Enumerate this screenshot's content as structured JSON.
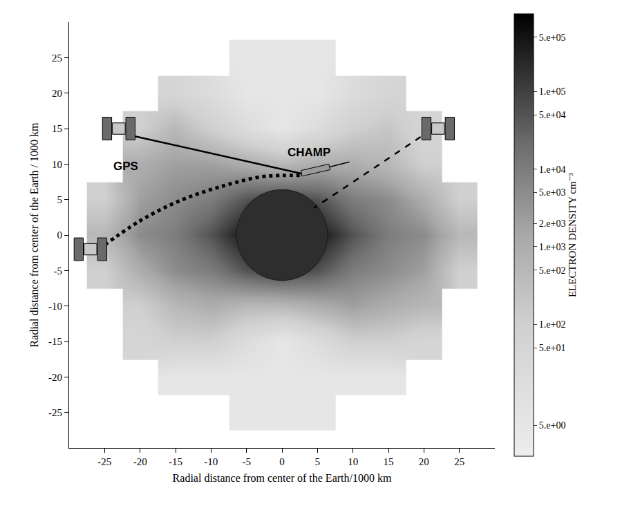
{
  "chart_data": {
    "type": "heatmap",
    "x": [
      -25,
      -20,
      -15,
      -10,
      -5,
      0,
      5,
      10,
      15,
      20,
      25
    ],
    "y": [
      -25,
      -20,
      -15,
      -10,
      -5,
      0,
      5,
      10,
      15,
      20,
      25
    ],
    "cells": [
      [
        null,
        null,
        null,
        null,
        5,
        5,
        5,
        null,
        null,
        null,
        null
      ],
      [
        null,
        null,
        5,
        5,
        5,
        5,
        5,
        5,
        5,
        null,
        null
      ],
      [
        null,
        50,
        100,
        100,
        20,
        5,
        20,
        100,
        100,
        50,
        null
      ],
      [
        null,
        100,
        500,
        1000,
        500,
        500,
        1000,
        2000,
        1000,
        500,
        null
      ],
      [
        100,
        1000,
        5000,
        10000,
        50000,
        100000,
        50000,
        10000,
        5000,
        2000,
        100
      ],
      [
        500,
        5000,
        10000,
        50000,
        500000,
        500000,
        500000,
        50000,
        10000,
        5000,
        500
      ],
      [
        100,
        2000,
        5000,
        10000,
        50000,
        100000,
        50000,
        10000,
        5000,
        1000,
        100
      ],
      [
        null,
        1000,
        2000,
        2000,
        1000,
        500,
        1000,
        1000,
        500,
        100,
        null
      ],
      [
        null,
        100,
        500,
        100,
        20,
        5,
        20,
        100,
        200,
        50,
        null
      ],
      [
        null,
        null,
        50,
        20,
        5,
        5,
        5,
        20,
        50,
        null,
        null
      ],
      [
        null,
        null,
        null,
        null,
        5,
        5,
        5,
        null,
        null,
        null,
        null
      ]
    ],
    "xlim": [
      -30,
      30
    ],
    "ylim": [
      -30,
      30
    ],
    "xticks": [
      -25,
      -20,
      -15,
      -10,
      -5,
      0,
      5,
      10,
      15,
      20,
      25
    ],
    "yticks": [
      -25,
      -20,
      -15,
      -10,
      -5,
      0,
      5,
      10,
      15,
      20,
      25
    ],
    "x_label": "Radial distance from center of the Earth/1000 km",
    "y_label": "Radial distance from center of the Earth / 1000 km",
    "colorbar": {
      "title": "ELECTRON DENSITY cm⁻³",
      "log": true,
      "range": [
        2,
        1000000
      ],
      "ticks": [
        {
          "value": 500000,
          "label": "5.e+05"
        },
        {
          "value": 100000,
          "label": "1.e+05"
        },
        {
          "value": 50000,
          "label": "5.e+04"
        },
        {
          "value": 10000,
          "label": "1.e+04"
        },
        {
          "value": 5000,
          "label": "5.e+03"
        },
        {
          "value": 2000,
          "label": "2.e+03"
        },
        {
          "value": 1000,
          "label": "1.e+03"
        },
        {
          "value": 500,
          "label": "5.e+02"
        },
        {
          "value": 100,
          "label": "1.e+02"
        },
        {
          "value": 50,
          "label": "5.e+01"
        },
        {
          "value": 5,
          "label": "5.e+00"
        }
      ]
    },
    "earth": {
      "x": 0,
      "y": 0,
      "radius": 6.4
    },
    "satellites": [
      {
        "kind": "GPS",
        "x": -23,
        "y": 15
      },
      {
        "kind": "GPS",
        "x": 22,
        "y": 15
      },
      {
        "kind": "GPS",
        "x": -27,
        "y": -2
      },
      {
        "kind": "CHAMP",
        "x": 4,
        "y": 8.6
      }
    ],
    "paths": [
      {
        "line_style": "solid",
        "x": [
          -22,
          3
        ],
        "y": [
          14.2,
          8.6
        ]
      },
      {
        "line_style": "dashed",
        "x": [
          21,
          4.5
        ],
        "y": [
          14.8,
          3.8
        ]
      },
      {
        "line_style": "dotted",
        "x": [
          -26.5,
          -20,
          -14,
          -8,
          -3,
          0,
          2.5
        ],
        "y": [
          -2.5,
          2,
          5,
          7,
          8.2,
          8.4,
          8.4
        ]
      }
    ],
    "texts": [
      {
        "text": "GPS",
        "x": -22,
        "y": 9.7
      },
      {
        "text": "CHAMP",
        "x": 3.8,
        "y": 11.6
      }
    ],
    "grid": false
  }
}
